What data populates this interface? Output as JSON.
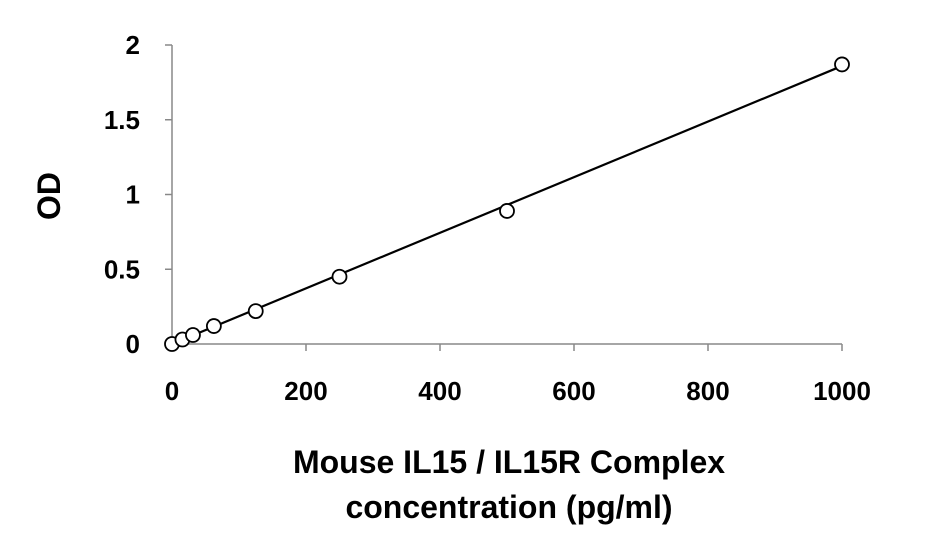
{
  "chart_data": {
    "type": "scatter",
    "title": "",
    "xlabel_lines": [
      "Mouse IL15 / IL15R Complex",
      "concentration (pg/ml)"
    ],
    "ylabel": "OD",
    "xlim": [
      0,
      1000
    ],
    "ylim": [
      0,
      2
    ],
    "x_ticks": [
      0,
      200,
      400,
      600,
      800,
      1000
    ],
    "y_ticks": [
      0,
      0.5,
      1,
      1.5,
      2
    ],
    "x_tick_labels": [
      "0",
      "200",
      "400",
      "600",
      "800",
      "1000"
    ],
    "y_tick_labels": [
      "0",
      "0.5",
      "1",
      "1.5",
      "2"
    ],
    "grid": false,
    "series": [
      {
        "x": [
          0,
          15.6,
          31.25,
          62.5,
          125,
          250,
          500,
          1000
        ],
        "y": [
          0.0,
          0.03,
          0.06,
          0.12,
          0.22,
          0.45,
          0.89,
          1.87
        ]
      }
    ],
    "fit_line": {
      "x": [
        0,
        1000
      ],
      "y": [
        0.0,
        1.86
      ]
    },
    "colors": {
      "marker_stroke": "#000000",
      "marker_fill": "#ffffff",
      "line": "#000000",
      "axis": "#888888"
    }
  }
}
